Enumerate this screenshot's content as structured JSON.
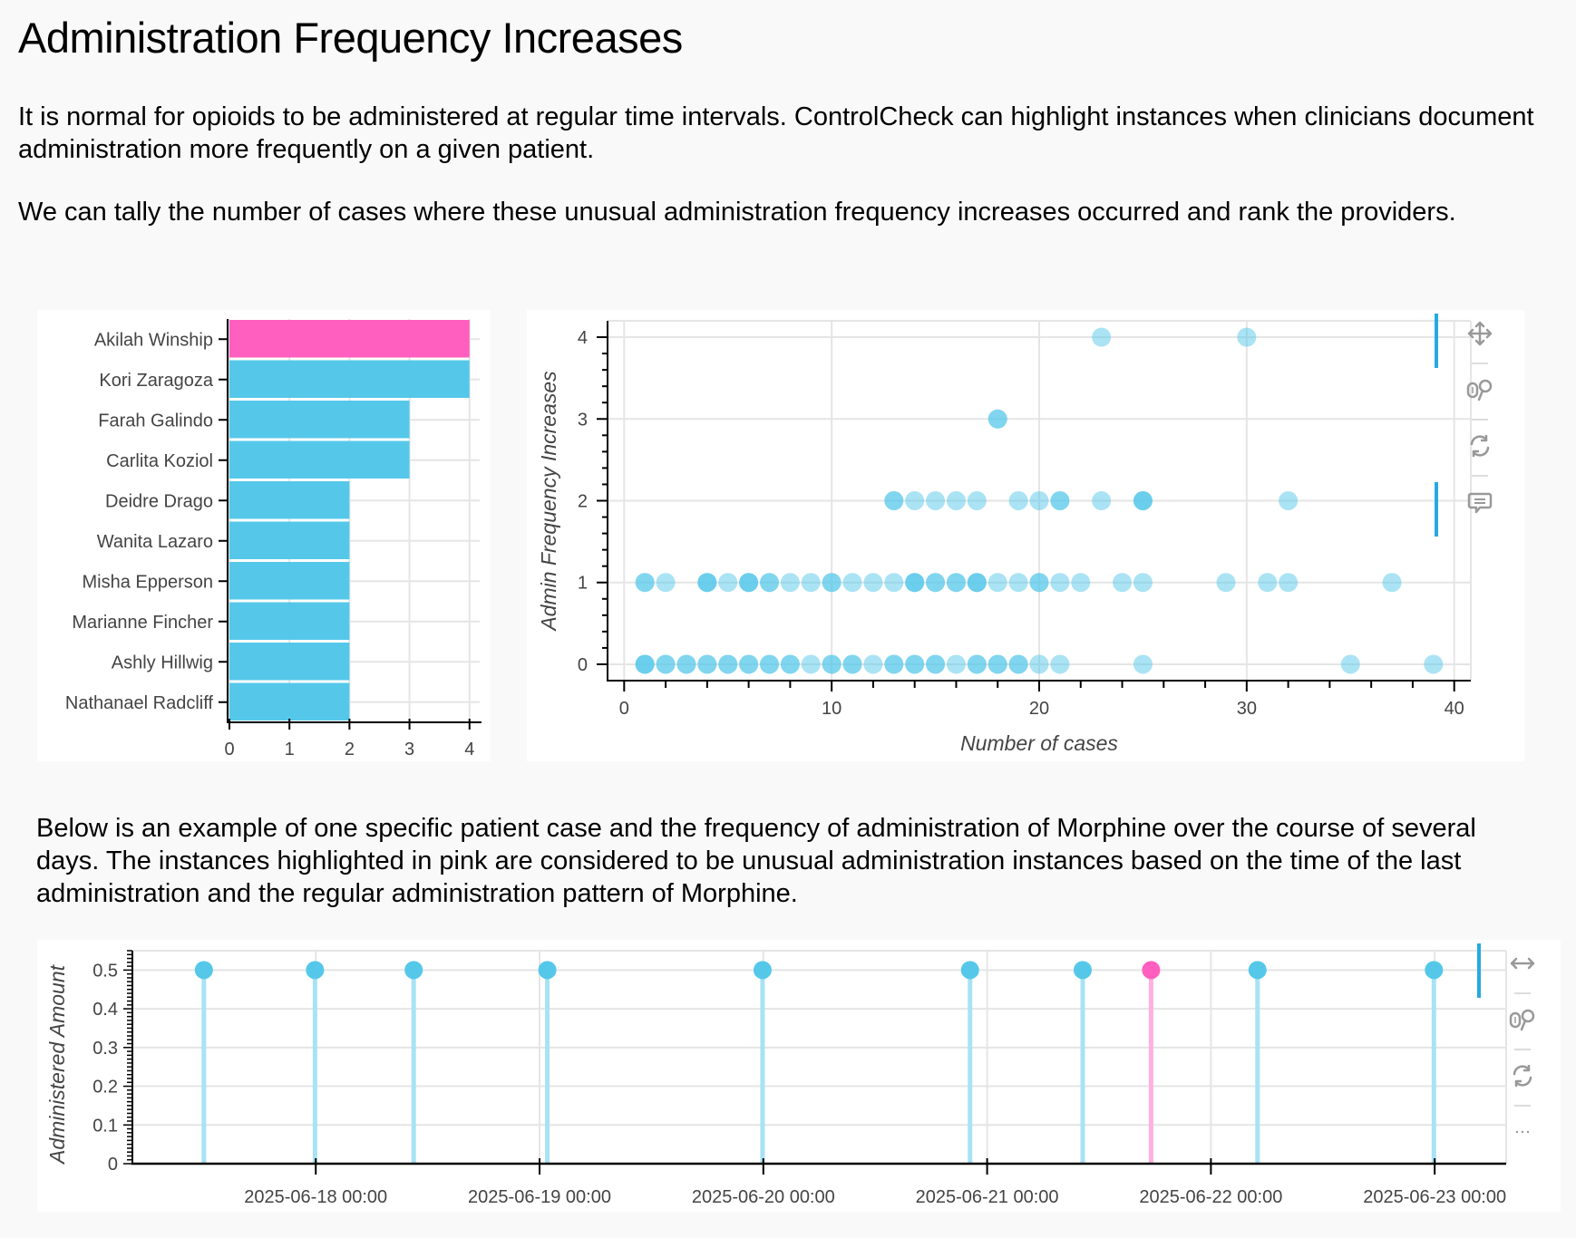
{
  "page": {
    "title": "Administration Frequency Increases",
    "paragraph1": "It is normal for opioids to be administered at regular time intervals. ControlCheck can highlight instances when clinicians document administration more frequently on a given patient.",
    "paragraph2": "We can tally the number of cases where these unusual administration frequency increases occurred and rank the providers.",
    "paragraph3": "Below is an example of one specific patient case and the frequency of administration of Morphine over the course of several days. The instances highlighted in pink are considered to be unusual administration instances based on the time of the last administration and the regular administration pattern of Morphine."
  },
  "colors": {
    "highlight": "#ff5fbe",
    "primary": "#55c8ea",
    "primary_light": "#a8e2f5",
    "highlight_light": "#ffb0de",
    "grid": "#e5e5e5",
    "tool_active": "#26aae1",
    "tool_icon": "#999999"
  },
  "toolbars": {
    "scatter": [
      {
        "icon": "pan-icon",
        "label": "Pan",
        "active": true
      },
      {
        "icon": "wheel-zoom-icon",
        "label": "Wheel Zoom",
        "active": false
      },
      {
        "icon": "reset-icon",
        "label": "Reset",
        "active": false
      },
      {
        "icon": "hover-icon",
        "label": "Hover",
        "active": true
      }
    ],
    "stem": [
      {
        "icon": "xpan-icon",
        "label": "X Pan",
        "active": true
      },
      {
        "icon": "wheel-zoom-icon",
        "label": "Wheel Zoom",
        "active": false
      },
      {
        "icon": "reset-icon",
        "label": "Reset",
        "active": false
      },
      {
        "icon": "more-icon",
        "label": "More",
        "active": false
      }
    ]
  },
  "chart_data": [
    {
      "type": "bar",
      "orientation": "horizontal",
      "title": "",
      "xlabel": "",
      "ylabel": "",
      "categories": [
        "Akilah Winship",
        "Kori Zaragoza",
        "Farah Galindo",
        "Carlita Koziol",
        "Deidre Drago",
        "Wanita Lazaro",
        "Misha Epperson",
        "Marianne Fincher",
        "Ashly Hillwig",
        "Nathanael Radcliff"
      ],
      "values": [
        4,
        4,
        3,
        3,
        2,
        2,
        2,
        2,
        2,
        2
      ],
      "highlighted": [
        "Akilah Winship"
      ],
      "xlim": [
        0,
        4.2
      ],
      "xticks": [
        0,
        1,
        2,
        3,
        4
      ],
      "grid": true
    },
    {
      "type": "scatter",
      "title": "",
      "xlabel": "Number of cases",
      "ylabel": "Admin Frequency Increases",
      "xlim": [
        -0.8,
        40.8
      ],
      "ylim": [
        -0.2,
        4.2
      ],
      "xticks": [
        0,
        10,
        20,
        30,
        40
      ],
      "yticks": [
        0,
        1,
        2,
        3,
        4
      ],
      "grid": true,
      "points": [
        [
          1,
          0
        ],
        [
          1,
          0
        ],
        [
          1,
          0
        ],
        [
          2,
          0
        ],
        [
          2,
          0
        ],
        [
          3,
          0
        ],
        [
          3,
          0
        ],
        [
          4,
          0
        ],
        [
          4,
          0
        ],
        [
          5,
          0
        ],
        [
          5,
          0
        ],
        [
          6,
          0
        ],
        [
          6,
          0
        ],
        [
          7,
          0
        ],
        [
          7,
          0
        ],
        [
          8,
          0
        ],
        [
          8,
          0
        ],
        [
          9,
          0
        ],
        [
          10,
          0
        ],
        [
          10,
          0
        ],
        [
          11,
          0
        ],
        [
          11,
          0
        ],
        [
          12,
          0
        ],
        [
          13,
          0
        ],
        [
          13,
          0
        ],
        [
          14,
          0
        ],
        [
          14,
          0
        ],
        [
          15,
          0
        ],
        [
          15,
          0
        ],
        [
          16,
          0
        ],
        [
          17,
          0
        ],
        [
          17,
          0
        ],
        [
          18,
          0
        ],
        [
          18,
          0
        ],
        [
          19,
          0
        ],
        [
          19,
          0
        ],
        [
          20,
          0
        ],
        [
          21,
          0
        ],
        [
          25,
          0
        ],
        [
          35,
          0
        ],
        [
          39,
          0
        ],
        [
          1,
          1
        ],
        [
          1,
          1
        ],
        [
          2,
          1
        ],
        [
          4,
          1
        ],
        [
          4,
          1
        ],
        [
          4,
          1
        ],
        [
          5,
          1
        ],
        [
          6,
          1
        ],
        [
          6,
          1
        ],
        [
          6,
          1
        ],
        [
          7,
          1
        ],
        [
          7,
          1
        ],
        [
          8,
          1
        ],
        [
          9,
          1
        ],
        [
          10,
          1
        ],
        [
          10,
          1
        ],
        [
          11,
          1
        ],
        [
          12,
          1
        ],
        [
          13,
          1
        ],
        [
          14,
          1
        ],
        [
          14,
          1
        ],
        [
          14,
          1
        ],
        [
          15,
          1
        ],
        [
          15,
          1
        ],
        [
          16,
          1
        ],
        [
          16,
          1
        ],
        [
          17,
          1
        ],
        [
          17,
          1
        ],
        [
          17,
          1
        ],
        [
          18,
          1
        ],
        [
          19,
          1
        ],
        [
          20,
          1
        ],
        [
          20,
          1
        ],
        [
          21,
          1
        ],
        [
          22,
          1
        ],
        [
          24,
          1
        ],
        [
          25,
          1
        ],
        [
          29,
          1
        ],
        [
          31,
          1
        ],
        [
          32,
          1
        ],
        [
          37,
          1
        ],
        [
          13,
          2
        ],
        [
          13,
          2
        ],
        [
          14,
          2
        ],
        [
          15,
          2
        ],
        [
          16,
          2
        ],
        [
          17,
          2
        ],
        [
          19,
          2
        ],
        [
          20,
          2
        ],
        [
          21,
          2
        ],
        [
          21,
          2
        ],
        [
          23,
          2
        ],
        [
          25,
          2
        ],
        [
          25,
          2
        ],
        [
          25,
          2
        ],
        [
          32,
          2
        ],
        [
          18,
          3
        ],
        [
          18,
          3
        ],
        [
          23,
          4
        ],
        [
          30,
          4
        ]
      ]
    },
    {
      "type": "stem",
      "title": "",
      "xlabel": "",
      "ylabel": "Administered Amount",
      "ylim": [
        0,
        0.55
      ],
      "yticks": [
        0,
        0.1,
        0.2,
        0.3,
        0.4,
        0.5
      ],
      "xlim": [
        "2025-06-17 04:20",
        "2025-06-23 07:40"
      ],
      "xticks": [
        "2025-06-18 00:00",
        "2025-06-19 00:00",
        "2025-06-20 00:00",
        "2025-06-21 00:00",
        "2025-06-22 00:00",
        "2025-06-23 00:00"
      ],
      "grid": true,
      "points": [
        {
          "t": "2025-06-17 12:00",
          "value": 0.5,
          "unusual": false
        },
        {
          "t": "2025-06-17 23:55",
          "value": 0.5,
          "unusual": false
        },
        {
          "t": "2025-06-18 10:30",
          "value": 0.5,
          "unusual": false
        },
        {
          "t": "2025-06-19 00:50",
          "value": 0.5,
          "unusual": false
        },
        {
          "t": "2025-06-19 23:55",
          "value": 0.5,
          "unusual": false
        },
        {
          "t": "2025-06-20 22:10",
          "value": 0.5,
          "unusual": false
        },
        {
          "t": "2025-06-21 10:15",
          "value": 0.5,
          "unusual": false
        },
        {
          "t": "2025-06-21 17:35",
          "value": 0.5,
          "unusual": true
        },
        {
          "t": "2025-06-22 05:00",
          "value": 0.5,
          "unusual": false
        },
        {
          "t": "2025-06-22 23:55",
          "value": 0.5,
          "unusual": false
        }
      ]
    }
  ]
}
